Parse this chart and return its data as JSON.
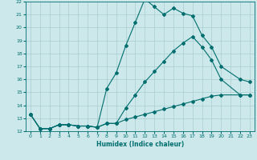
{
  "xlabel": "Humidex (Indice chaleur)",
  "bg_color": "#cce8ea",
  "grid_color": "#aacdd0",
  "line_color": "#006e6e",
  "xlim": [
    -0.5,
    23.5
  ],
  "ylim": [
    12,
    22
  ],
  "xticks": [
    0,
    1,
    2,
    3,
    4,
    5,
    6,
    7,
    8,
    9,
    10,
    11,
    12,
    13,
    14,
    15,
    16,
    17,
    18,
    19,
    20,
    21,
    22,
    23
  ],
  "yticks": [
    12,
    13,
    14,
    15,
    16,
    17,
    18,
    19,
    20,
    21,
    22
  ],
  "line_top_x": [
    0,
    1,
    2,
    3,
    4,
    5,
    6,
    7,
    8,
    9,
    10,
    11,
    12,
    13,
    14,
    15,
    16,
    17,
    18,
    19,
    20,
    22,
    23
  ],
  "line_top_y": [
    13.3,
    12.2,
    12.2,
    12.5,
    12.5,
    12.4,
    12.4,
    12.3,
    15.3,
    16.5,
    18.6,
    20.4,
    22.2,
    21.6,
    21.0,
    21.5,
    21.1,
    20.9,
    19.4,
    18.5,
    17.0,
    16.0,
    15.8
  ],
  "line_mid_x": [
    0,
    1,
    2,
    3,
    4,
    5,
    6,
    7,
    8,
    9,
    10,
    11,
    12,
    13,
    14,
    15,
    16,
    17,
    18,
    19,
    20,
    22,
    23
  ],
  "line_mid_y": [
    13.3,
    12.2,
    12.2,
    12.5,
    12.5,
    12.4,
    12.4,
    12.3,
    12.6,
    12.6,
    13.8,
    14.8,
    15.8,
    16.6,
    17.4,
    18.2,
    18.8,
    19.3,
    18.5,
    17.5,
    16.0,
    14.8,
    14.8
  ],
  "line_bot_x": [
    0,
    1,
    2,
    3,
    4,
    5,
    6,
    7,
    8,
    9,
    10,
    11,
    12,
    13,
    14,
    15,
    16,
    17,
    18,
    19,
    20,
    22,
    23
  ],
  "line_bot_y": [
    13.3,
    12.2,
    12.2,
    12.5,
    12.5,
    12.4,
    12.4,
    12.3,
    12.6,
    12.6,
    12.9,
    13.1,
    13.3,
    13.5,
    13.7,
    13.9,
    14.1,
    14.3,
    14.5,
    14.7,
    14.8,
    14.8,
    14.8
  ]
}
